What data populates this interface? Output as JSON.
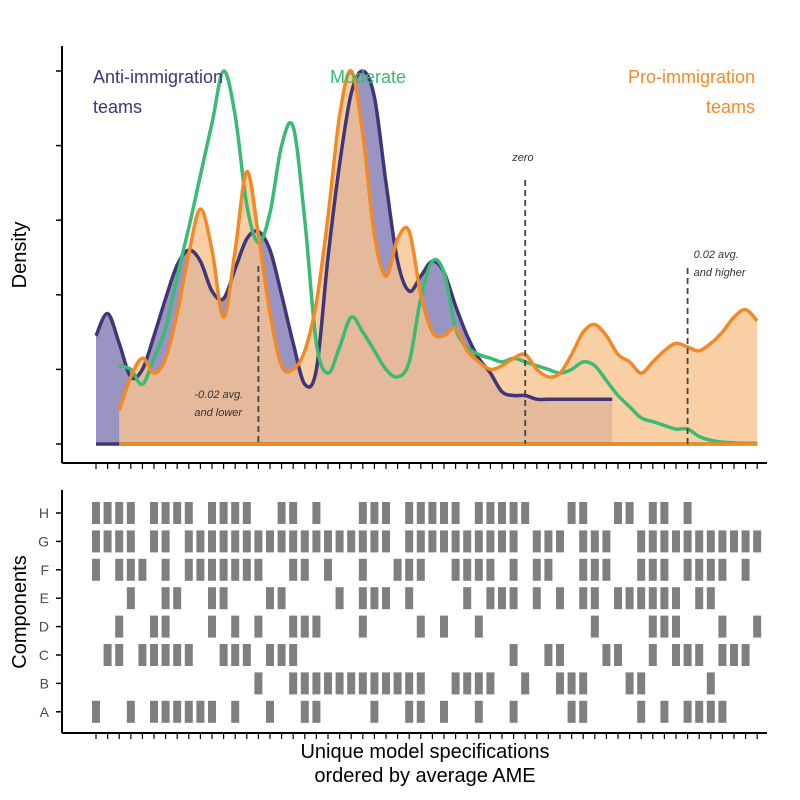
{
  "chart_data": [
    {
      "type": "area",
      "ylabel": "Density",
      "legend": [
        {
          "name": "anti",
          "lines": [
            "Anti-immigration",
            "teams"
          ],
          "color": "#3f3578",
          "fill": "#9a94c3",
          "placement": "top-left"
        },
        {
          "name": "moderate",
          "lines": [
            "Moderate"
          ],
          "color": "#3aba72",
          "placement": "top-center"
        },
        {
          "name": "pro",
          "lines": [
            "Pro-immigration",
            "teams"
          ],
          "color": "#f08a28",
          "fill": "#f7c390",
          "placement": "top-right"
        }
      ],
      "annotations": [
        {
          "key": "low",
          "lines": [
            "-0.02 avg.",
            "and lower"
          ],
          "x": 14
        },
        {
          "key": "zero",
          "lines": [
            "zero"
          ],
          "x": 37
        },
        {
          "key": "high",
          "lines": [
            "0.02 avg.",
            "and higher"
          ],
          "x": 51
        }
      ],
      "x_range": [
        0,
        58
      ],
      "y_range": [
        0,
        1
      ],
      "series": [
        {
          "name": "anti",
          "x_start": 0,
          "x_end": 44.5,
          "points": [
            [
              0,
              0.29
            ],
            [
              1,
              0.35
            ],
            [
              2,
              0.27
            ],
            [
              3,
              0.18
            ],
            [
              4,
              0.2
            ],
            [
              5,
              0.29
            ],
            [
              6,
              0.39
            ],
            [
              7,
              0.48
            ],
            [
              8,
              0.52
            ],
            [
              9,
              0.49
            ],
            [
              10,
              0.41
            ],
            [
              11,
              0.39
            ],
            [
              12,
              0.47
            ],
            [
              13,
              0.55
            ],
            [
              14,
              0.57
            ],
            [
              15,
              0.52
            ],
            [
              16,
              0.4
            ],
            [
              17,
              0.27
            ],
            [
              18,
              0.16
            ],
            [
              19,
              0.2
            ],
            [
              20,
              0.5
            ],
            [
              21,
              0.75
            ],
            [
              22,
              0.94
            ],
            [
              23,
              1.0
            ],
            [
              24,
              0.93
            ],
            [
              25,
              0.7
            ],
            [
              26,
              0.49
            ],
            [
              27,
              0.41
            ],
            [
              28,
              0.45
            ],
            [
              29,
              0.49
            ],
            [
              30,
              0.46
            ],
            [
              31,
              0.37
            ],
            [
              32,
              0.29
            ],
            [
              33,
              0.23
            ],
            [
              34,
              0.19
            ],
            [
              35,
              0.14
            ],
            [
              36,
              0.13
            ],
            [
              37,
              0.13
            ],
            [
              38,
              0.12
            ],
            [
              39,
              0.12
            ],
            [
              40,
              0.12
            ],
            [
              41,
              0.12
            ],
            [
              42,
              0.12
            ],
            [
              43,
              0.12
            ],
            [
              44,
              0.12
            ],
            [
              44.5,
              0.12
            ]
          ]
        },
        {
          "name": "moderate",
          "x_start": 2,
          "x_end": 57,
          "points": [
            [
              2,
              0.21
            ],
            [
              3,
              0.2
            ],
            [
              4,
              0.16
            ],
            [
              5,
              0.23
            ],
            [
              6,
              0.31
            ],
            [
              7,
              0.45
            ],
            [
              8,
              0.58
            ],
            [
              9,
              0.72
            ],
            [
              10,
              0.86
            ],
            [
              11,
              1.0
            ],
            [
              12,
              0.88
            ],
            [
              13,
              0.64
            ],
            [
              14,
              0.54
            ],
            [
              15,
              0.62
            ],
            [
              16,
              0.8
            ],
            [
              17,
              0.85
            ],
            [
              18,
              0.6
            ],
            [
              19,
              0.27
            ],
            [
              20,
              0.19
            ],
            [
              21,
              0.26
            ],
            [
              22,
              0.34
            ],
            [
              23,
              0.3
            ],
            [
              24,
              0.25
            ],
            [
              25,
              0.2
            ],
            [
              26,
              0.18
            ],
            [
              27,
              0.22
            ],
            [
              28,
              0.39
            ],
            [
              29,
              0.49
            ],
            [
              30,
              0.46
            ],
            [
              31,
              0.31
            ],
            [
              32,
              0.26
            ],
            [
              33,
              0.24
            ],
            [
              34,
              0.23
            ],
            [
              35,
              0.22
            ],
            [
              36,
              0.23
            ],
            [
              37,
              0.22
            ],
            [
              38,
              0.21
            ],
            [
              39,
              0.2
            ],
            [
              40,
              0.19
            ],
            [
              41,
              0.2
            ],
            [
              42,
              0.22
            ],
            [
              43,
              0.21
            ],
            [
              44,
              0.17
            ],
            [
              45,
              0.13
            ],
            [
              46,
              0.1
            ],
            [
              47,
              0.07
            ],
            [
              48,
              0.06
            ],
            [
              49,
              0.05
            ],
            [
              50,
              0.04
            ],
            [
              51,
              0.04
            ],
            [
              52,
              0.02
            ],
            [
              53,
              0.01
            ],
            [
              54,
              0.005
            ],
            [
              55,
              0.003
            ],
            [
              56,
              0.002
            ],
            [
              57,
              0.002
            ]
          ]
        },
        {
          "name": "pro",
          "x_start": 2,
          "x_end": 57,
          "points": [
            [
              2,
              0.09
            ],
            [
              3,
              0.18
            ],
            [
              4,
              0.23
            ],
            [
              5,
              0.19
            ],
            [
              6,
              0.23
            ],
            [
              7,
              0.35
            ],
            [
              8,
              0.51
            ],
            [
              9,
              0.63
            ],
            [
              10,
              0.52
            ],
            [
              11,
              0.34
            ],
            [
              12,
              0.52
            ],
            [
              13,
              0.73
            ],
            [
              14,
              0.56
            ],
            [
              15,
              0.35
            ],
            [
              16,
              0.21
            ],
            [
              17,
              0.2
            ],
            [
              18,
              0.25
            ],
            [
              19,
              0.38
            ],
            [
              20,
              0.61
            ],
            [
              21,
              0.88
            ],
            [
              22,
              1.0
            ],
            [
              23,
              0.83
            ],
            [
              24,
              0.56
            ],
            [
              25,
              0.45
            ],
            [
              26,
              0.55
            ],
            [
              27,
              0.57
            ],
            [
              28,
              0.4
            ],
            [
              29,
              0.3
            ],
            [
              30,
              0.29
            ],
            [
              31,
              0.31
            ],
            [
              32,
              0.25
            ],
            [
              33,
              0.22
            ],
            [
              34,
              0.2
            ],
            [
              35,
              0.21
            ],
            [
              36,
              0.23
            ],
            [
              37,
              0.24
            ],
            [
              38,
              0.2
            ],
            [
              39,
              0.18
            ],
            [
              40,
              0.19
            ],
            [
              41,
              0.24
            ],
            [
              42,
              0.3
            ],
            [
              43,
              0.32
            ],
            [
              44,
              0.29
            ],
            [
              45,
              0.24
            ],
            [
              46,
              0.22
            ],
            [
              47,
              0.19
            ],
            [
              48,
              0.22
            ],
            [
              49,
              0.25
            ],
            [
              50,
              0.27
            ],
            [
              51,
              0.26
            ],
            [
              52,
              0.25
            ],
            [
              53,
              0.27
            ],
            [
              54,
              0.3
            ],
            [
              55,
              0.34
            ],
            [
              56,
              0.36
            ],
            [
              57,
              0.33
            ]
          ]
        }
      ]
    },
    {
      "type": "heatmap",
      "xlabel": [
        "Unique model specifications",
        "ordered by average AME"
      ],
      "ylabel": "Components",
      "n_columns": 58,
      "rows": [
        {
          "label": "H",
          "on": [
            0,
            1,
            2,
            3,
            5,
            6,
            7,
            8,
            10,
            11,
            12,
            13,
            16,
            17,
            19,
            23,
            24,
            25,
            27,
            28,
            29,
            30,
            31,
            33,
            34,
            35,
            36,
            37,
            41,
            42,
            45,
            46,
            48,
            49,
            51
          ]
        },
        {
          "label": "G",
          "on": [
            0,
            1,
            2,
            3,
            5,
            6,
            8,
            9,
            10,
            11,
            12,
            13,
            14,
            15,
            16,
            17,
            18,
            19,
            20,
            21,
            22,
            23,
            24,
            25,
            27,
            28,
            29,
            30,
            31,
            32,
            33,
            34,
            35,
            36,
            38,
            39,
            40,
            42,
            43,
            44,
            47,
            48,
            49,
            50,
            51,
            52,
            53,
            54,
            55,
            56,
            57
          ]
        },
        {
          "label": "F",
          "on": [
            0,
            2,
            3,
            4,
            6,
            8,
            9,
            10,
            11,
            12,
            13,
            14,
            17,
            18,
            20,
            23,
            26,
            27,
            28,
            31,
            32,
            33,
            34,
            36,
            38,
            39,
            42,
            43,
            44,
            47,
            48,
            49,
            51,
            52,
            53,
            54,
            56
          ]
        },
        {
          "label": "E",
          "on": [
            3,
            6,
            7,
            10,
            11,
            15,
            16,
            21,
            23,
            24,
            25,
            27,
            32,
            34,
            35,
            36,
            38,
            40,
            42,
            43,
            45,
            46,
            47,
            48,
            49,
            50,
            52,
            53
          ]
        },
        {
          "label": "D",
          "on": [
            2,
            5,
            6,
            10,
            12,
            14,
            17,
            18,
            19,
            23,
            28,
            30,
            33,
            43,
            48,
            49,
            50,
            54,
            57
          ]
        },
        {
          "label": "C",
          "on": [
            1,
            2,
            4,
            5,
            6,
            7,
            8,
            11,
            12,
            13,
            15,
            16,
            17,
            36,
            39,
            40,
            44,
            45,
            48,
            50,
            51,
            52,
            54,
            55,
            56
          ]
        },
        {
          "label": "B",
          "on": [
            14,
            17,
            18,
            19,
            20,
            21,
            22,
            23,
            24,
            25,
            26,
            27,
            28,
            31,
            32,
            33,
            34,
            37,
            40,
            41,
            42,
            46,
            47,
            53
          ]
        },
        {
          "label": "A",
          "on": [
            0,
            3,
            5,
            6,
            7,
            8,
            9,
            10,
            12,
            15,
            18,
            19,
            24,
            27,
            28,
            30,
            33,
            36,
            41,
            42,
            47,
            49,
            51,
            52,
            53,
            54
          ]
        }
      ]
    }
  ]
}
